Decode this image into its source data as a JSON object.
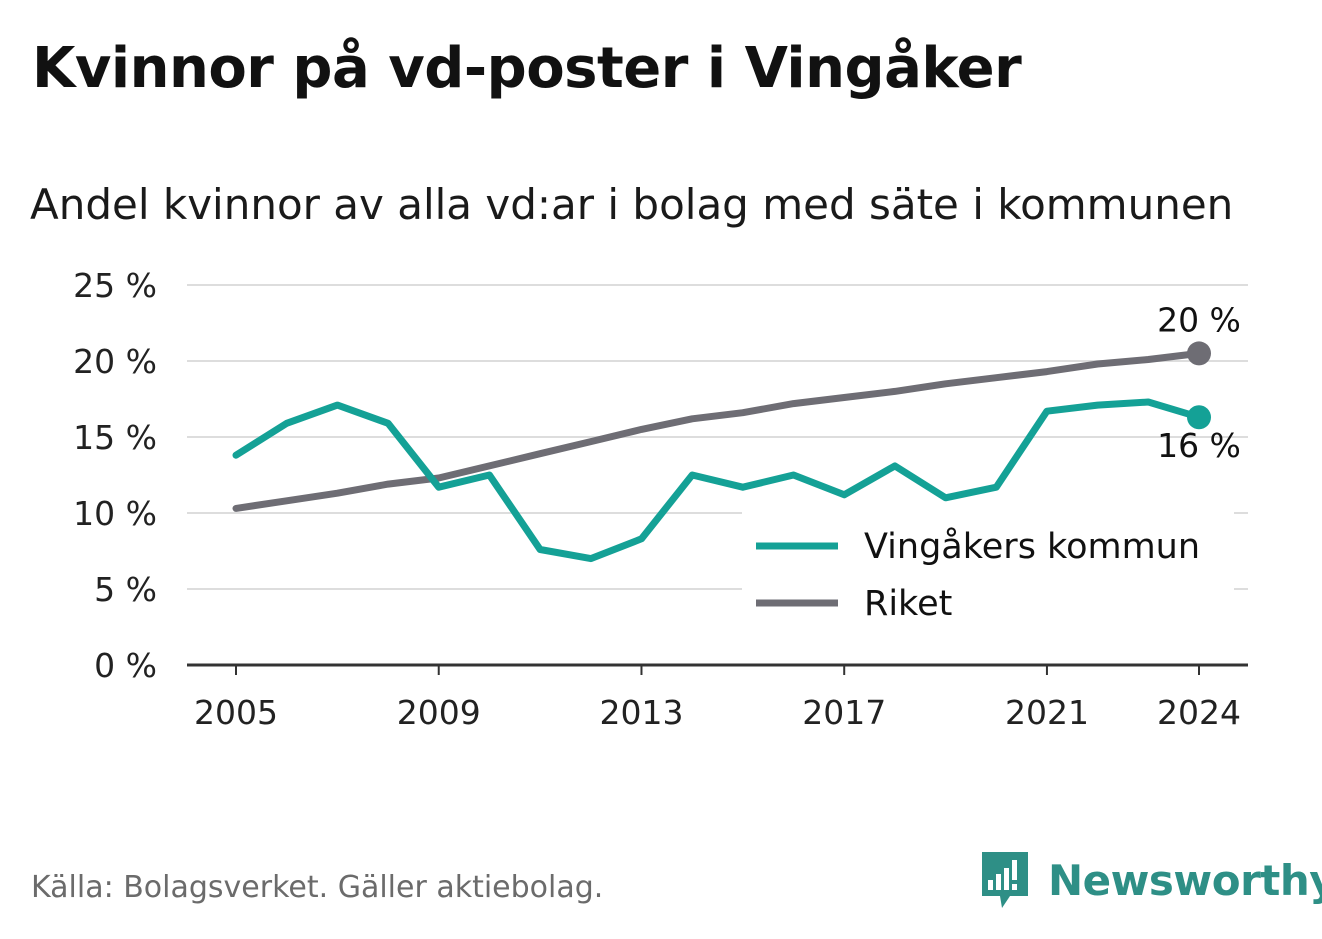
{
  "title": "Kvinnor på vd-poster i Vingåker",
  "subtitle": "Andel kvinnor av alla vd:ar i bolag med säte i kommunen",
  "source": "Källa: Bolagsverket. Gäller aktiebolag.",
  "brand": {
    "name": "Newsworthy",
    "icon": "newsworthy-logo-icon",
    "color": "#2e8f86"
  },
  "chart_data": {
    "type": "line",
    "title": "Kvinnor på vd-poster i Vingåker",
    "subtitle": "Andel kvinnor av alla vd:ar i bolag med säte i kommunen",
    "xlabel": "",
    "ylabel": "",
    "ylim": [
      0,
      25
    ],
    "xlim": [
      2005,
      2024
    ],
    "grid": true,
    "legend_position": "bottom-right",
    "x_ticks": [
      2005,
      2009,
      2013,
      2017,
      2021,
      2024
    ],
    "x_tick_labels": [
      "2005",
      "2009",
      "2013",
      "2017",
      "2021",
      "2024"
    ],
    "y_ticks": [
      0,
      5,
      10,
      15,
      20,
      25
    ],
    "y_tick_labels": [
      "0 %",
      "5 %",
      "10 %",
      "15 %",
      "20 %",
      "25 %"
    ],
    "x": [
      2005,
      2006,
      2007,
      2008,
      2009,
      2010,
      2011,
      2012,
      2013,
      2014,
      2015,
      2016,
      2017,
      2018,
      2019,
      2020,
      2021,
      2022,
      2023,
      2024
    ],
    "series": [
      {
        "name": "Vingåkers kommun",
        "color": "#14a196",
        "values": [
          13.8,
          15.9,
          17.1,
          15.9,
          11.7,
          12.5,
          7.6,
          7.0,
          8.3,
          12.5,
          11.7,
          12.5,
          11.2,
          13.1,
          11.0,
          11.7,
          16.7,
          17.1,
          17.3,
          16.3
        ],
        "end_label": "16 %"
      },
      {
        "name": "Riket",
        "color": "#6e6d74",
        "values": [
          10.3,
          10.8,
          11.3,
          11.9,
          12.3,
          13.1,
          13.9,
          14.7,
          15.5,
          16.2,
          16.6,
          17.2,
          17.6,
          18.0,
          18.5,
          18.9,
          19.3,
          19.8,
          20.1,
          20.5
        ],
        "end_label": "20 %"
      }
    ]
  }
}
